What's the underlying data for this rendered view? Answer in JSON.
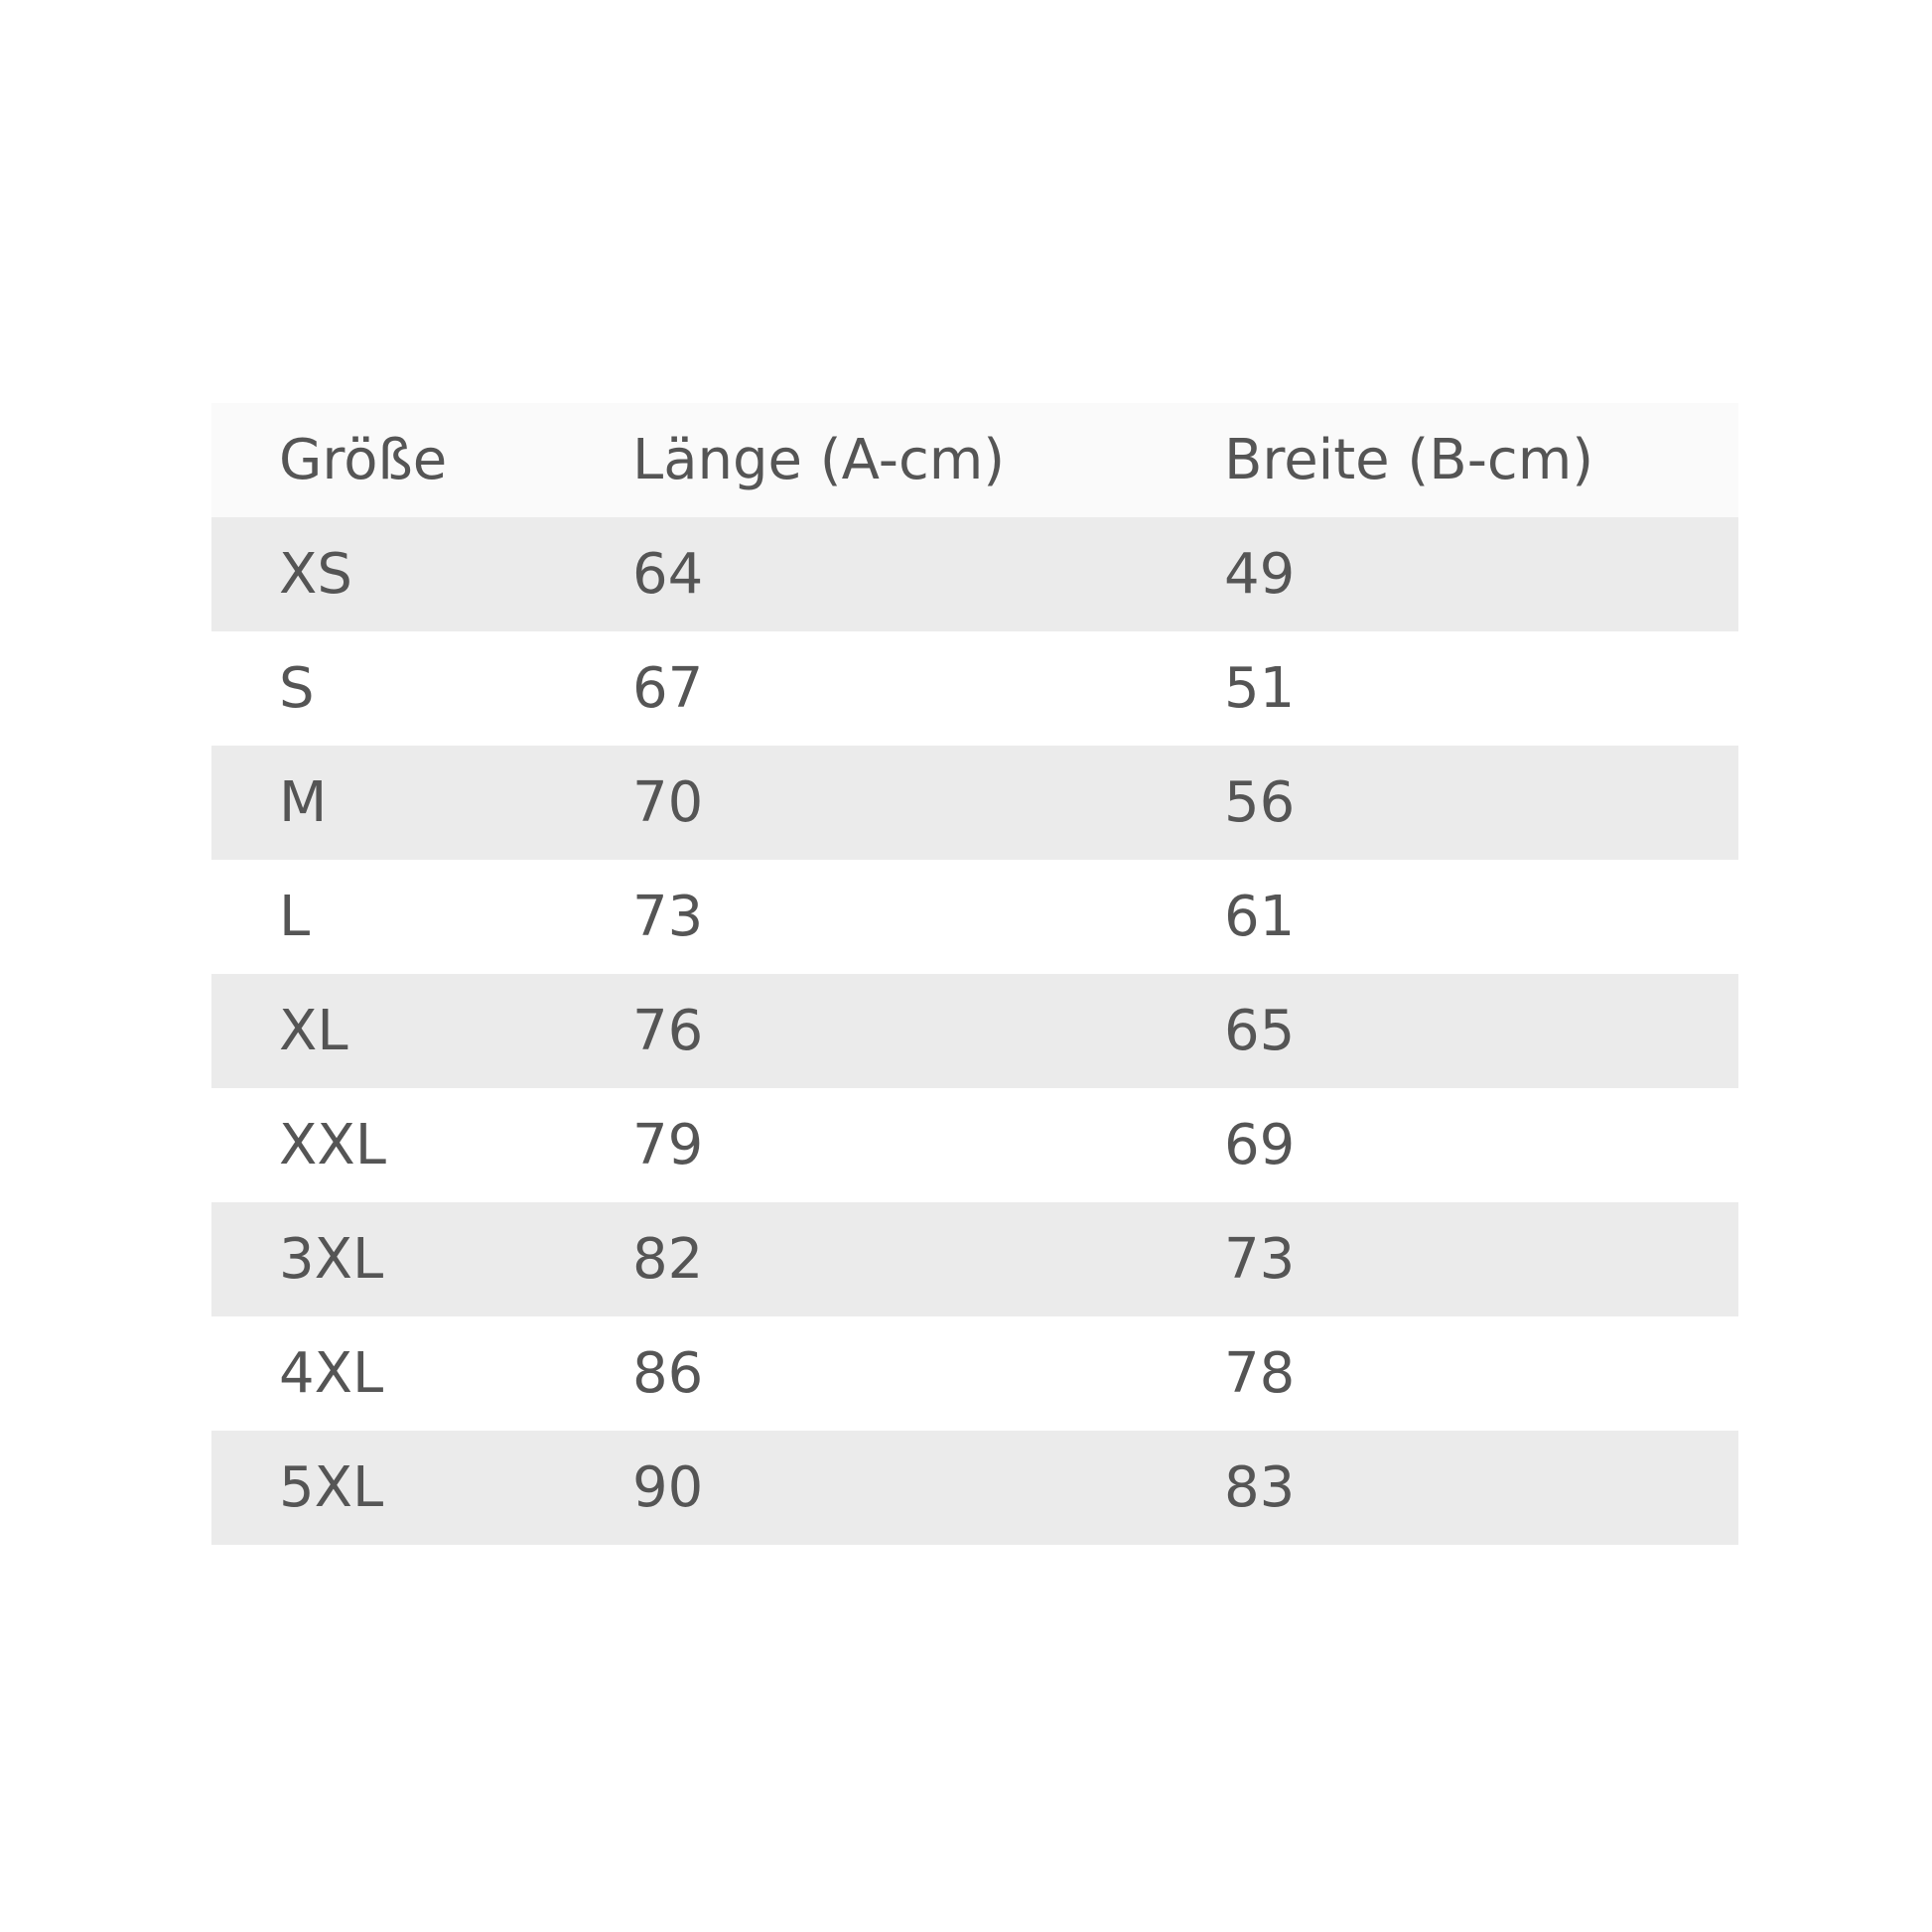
{
  "table": {
    "header": [
      "Größe",
      "Länge (A-cm)",
      "Breite (B-cm)"
    ],
    "rows": [
      [
        "XS",
        64,
        49
      ],
      [
        "S",
        67,
        51
      ],
      [
        "M",
        70,
        56
      ],
      [
        "L",
        73,
        61
      ],
      [
        "XL",
        76,
        65
      ],
      [
        "XXL",
        79,
        69
      ],
      [
        "3XL",
        82,
        73
      ],
      [
        "4XL",
        86,
        78
      ],
      [
        "5XL",
        90,
        83
      ]
    ]
  }
}
